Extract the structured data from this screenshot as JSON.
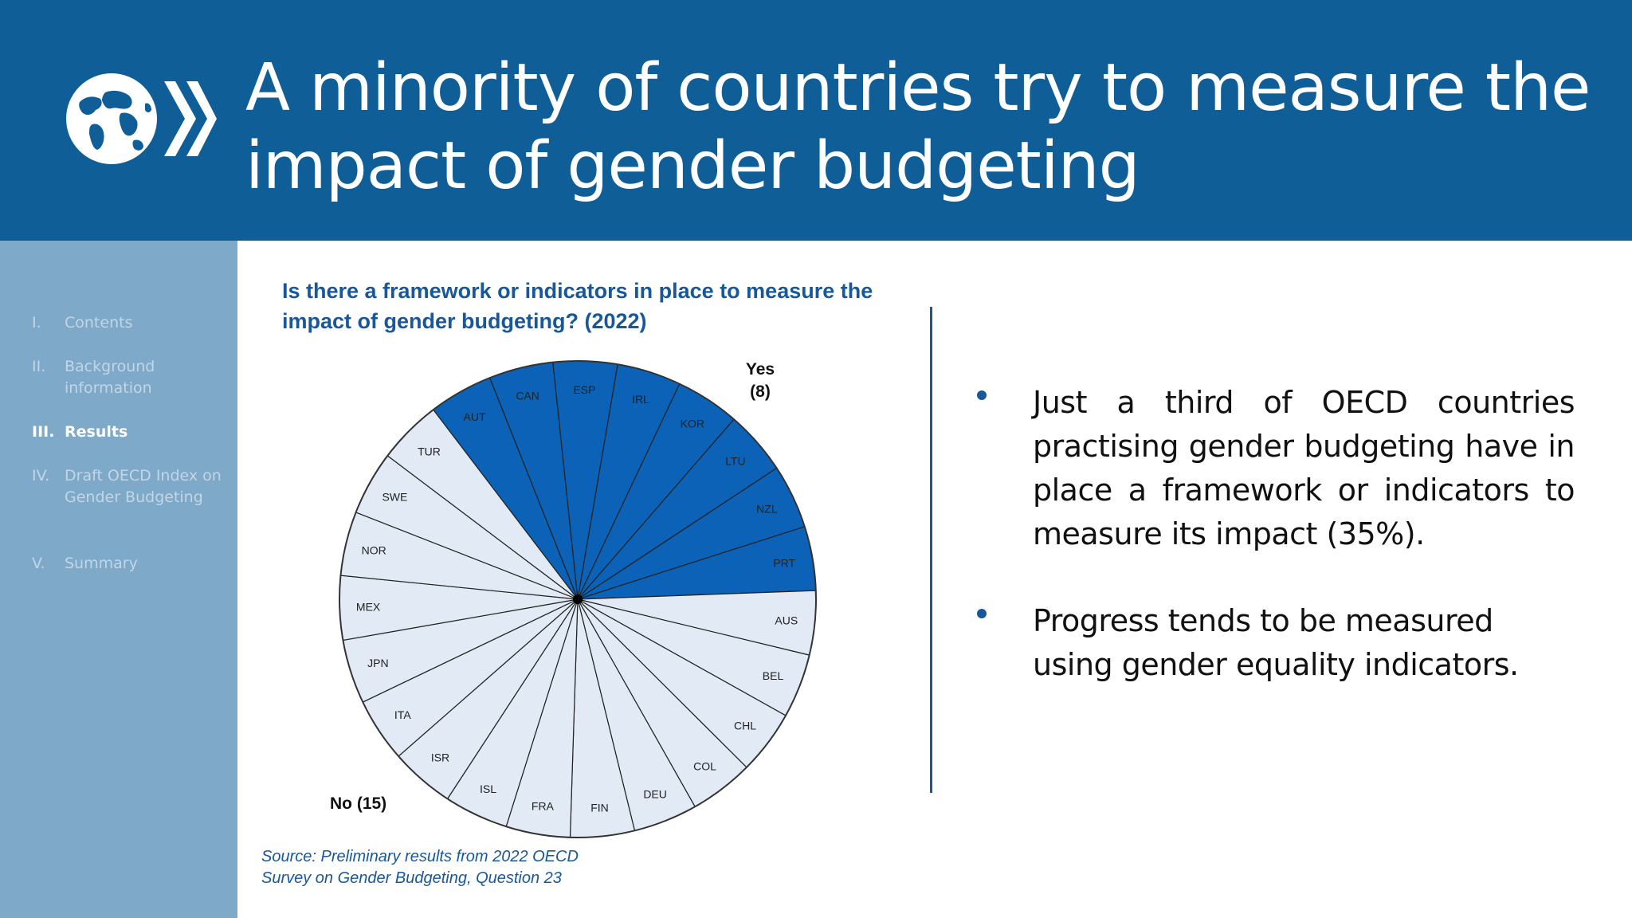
{
  "slide": {
    "title": "A minority of countries try to measure the impact of gender budgeting"
  },
  "sidebar": {
    "items": [
      {
        "num": "I.",
        "label": "Contents",
        "active": false
      },
      {
        "num": "II.",
        "label": "Background information",
        "active": false
      },
      {
        "num": "III.",
        "label": "Results",
        "active": true
      },
      {
        "num": "IV.",
        "label": "Draft OECD Index on Gender Budgeting",
        "active": false
      },
      {
        "num": "V.",
        "label": "Summary",
        "active": false
      }
    ]
  },
  "bullets": [
    "Just a third of OECD countries practising gender budgeting have in place a framework or indicators to measure its impact (35%).",
    "Progress tends to be measured using gender equality indicators."
  ],
  "source": "Source: Preliminary results from 2022 OECD Survey on Gender Budgeting, Question 23",
  "colors": {
    "header_bg": "#0f5e98",
    "sidebar_bg": "#7fa9c8",
    "yes_fill": "#0b62b7",
    "no_fill": "#e1eaf5",
    "accent_text": "#17579a"
  },
  "chart_data": {
    "type": "pie",
    "title": "Is there a framework or indicators in place to measure the impact of gender budgeting? (2022)",
    "groups": [
      {
        "name": "Yes",
        "label_line1": "Yes",
        "label_line2": "(8)",
        "count": 8
      },
      {
        "name": "No",
        "label": "No (15)",
        "count": 15
      }
    ],
    "slices": [
      {
        "label": "ESP",
        "group": "Yes",
        "value": 1
      },
      {
        "label": "IRL",
        "group": "Yes",
        "value": 1
      },
      {
        "label": "KOR",
        "group": "Yes",
        "value": 1
      },
      {
        "label": "LTU",
        "group": "Yes",
        "value": 1
      },
      {
        "label": "NZL",
        "group": "Yes",
        "value": 1
      },
      {
        "label": "PRT",
        "group": "Yes",
        "value": 1
      },
      {
        "label": "AUS",
        "group": "No",
        "value": 1
      },
      {
        "label": "BEL",
        "group": "No",
        "value": 1
      },
      {
        "label": "CHL",
        "group": "No",
        "value": 1
      },
      {
        "label": "COL",
        "group": "No",
        "value": 1
      },
      {
        "label": "DEU",
        "group": "No",
        "value": 1
      },
      {
        "label": "FIN",
        "group": "No",
        "value": 1
      },
      {
        "label": "FRA",
        "group": "No",
        "value": 1
      },
      {
        "label": "ISL",
        "group": "No",
        "value": 1
      },
      {
        "label": "ISR",
        "group": "No",
        "value": 1
      },
      {
        "label": "ITA",
        "group": "No",
        "value": 1
      },
      {
        "label": "JPN",
        "group": "No",
        "value": 1
      },
      {
        "label": "MEX",
        "group": "No",
        "value": 1
      },
      {
        "label": "NOR",
        "group": "No",
        "value": 1
      },
      {
        "label": "SWE",
        "group": "No",
        "value": 1
      },
      {
        "label": "TUR",
        "group": "No",
        "value": 1
      },
      {
        "label": "AUT",
        "group": "Yes",
        "value": 1
      },
      {
        "label": "CAN",
        "group": "Yes",
        "value": 1
      }
    ]
  }
}
